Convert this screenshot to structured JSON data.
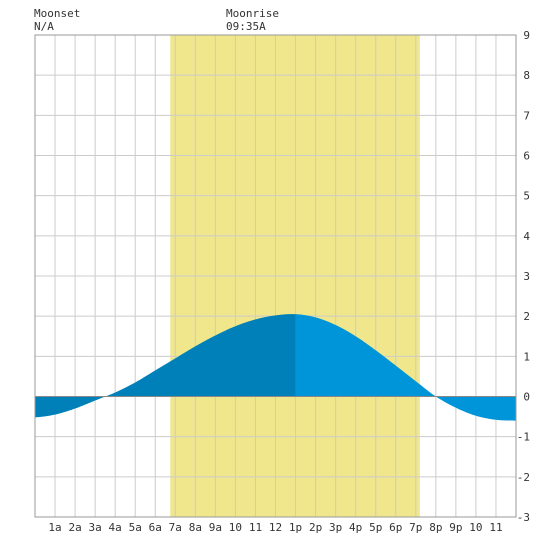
{
  "header": {
    "moonset_label": "Moonset",
    "moonset_value": "N/A",
    "moonrise_label": "Moonrise",
    "moonrise_value": "09:35A"
  },
  "colors": {
    "daylight": "#f0e68c",
    "tide_past": "#0080b8",
    "tide_future": "#0094d8",
    "grid": "#cccccc",
    "zero_line": "#888888"
  },
  "chart_data": {
    "type": "area",
    "title": "",
    "xlabel": "",
    "ylabel": "",
    "xlim": [
      0,
      24
    ],
    "ylim": [
      -3,
      9
    ],
    "x_tick_labels": [
      "1a",
      "2a",
      "3a",
      "4a",
      "5a",
      "6a",
      "7a",
      "8a",
      "9a",
      "10",
      "11",
      "12",
      "1p",
      "2p",
      "3p",
      "4p",
      "5p",
      "6p",
      "7p",
      "8p",
      "9p",
      "10",
      "11"
    ],
    "y_tick_labels": [
      "-3",
      "-2",
      "-1",
      "0",
      "1",
      "2",
      "3",
      "4",
      "5",
      "6",
      "7",
      "8",
      "9"
    ],
    "daylight_hours": [
      6.75,
      19.2
    ],
    "current_time_hour": 13.0,
    "series": [
      {
        "x": [
          0,
          1,
          2,
          3,
          4,
          5,
          6,
          7,
          8,
          9,
          10,
          11,
          12,
          13,
          14,
          15,
          16,
          17,
          18,
          19,
          20,
          21,
          22,
          23,
          24
        ],
        "values": [
          -0.52,
          -0.45,
          -0.3,
          -0.1,
          0.1,
          0.35,
          0.65,
          0.95,
          1.25,
          1.52,
          1.75,
          1.92,
          2.02,
          2.05,
          1.97,
          1.78,
          1.5,
          1.15,
          0.77,
          0.38,
          0.0,
          -0.28,
          -0.48,
          -0.58,
          -0.6
        ]
      }
    ]
  }
}
